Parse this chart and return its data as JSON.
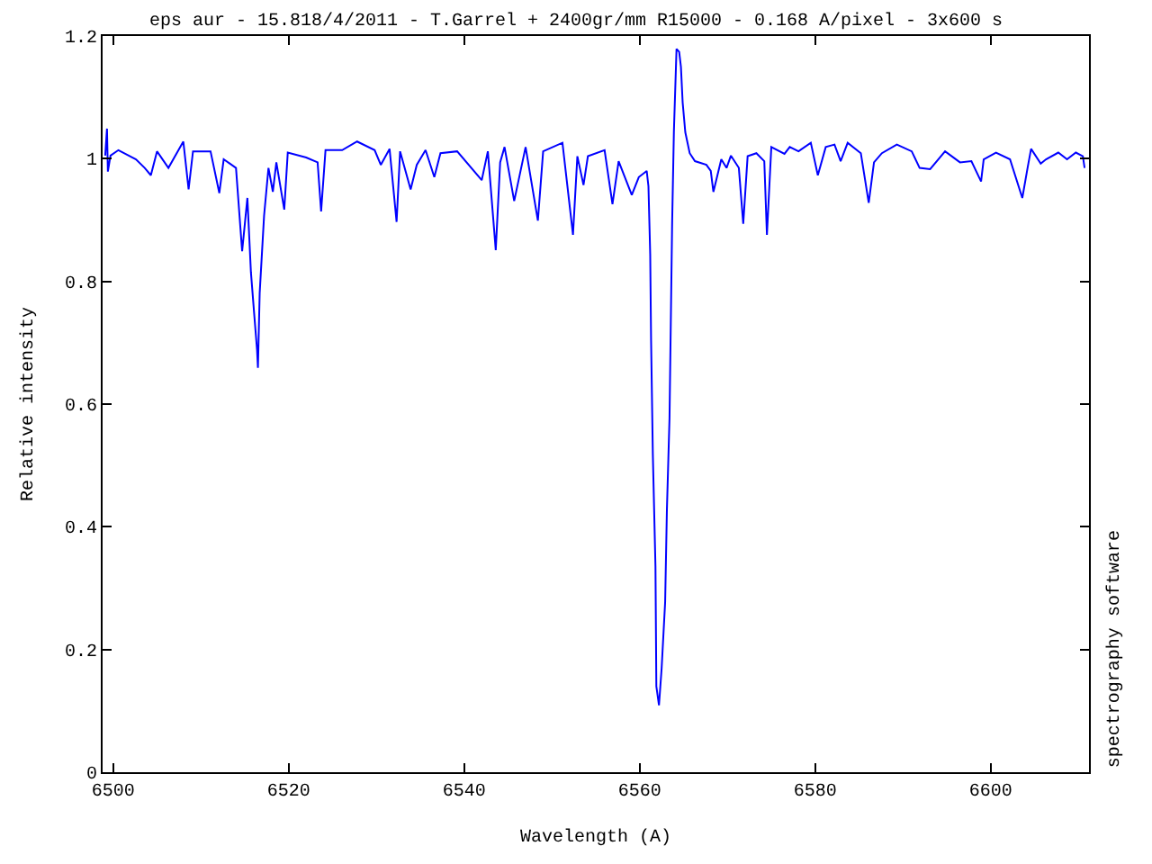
{
  "chart_data": {
    "type": "line",
    "title": "eps aur - 15.818/4/2011 - T.Garrel + 2400gr/mm R15000 - 0.168 A/pixel - 3x600 s",
    "xlabel": "Wavelength (A)",
    "ylabel": "Relative intensity",
    "annotations": [
      "spectrography software"
    ],
    "x": [
      6499.1,
      6499.3,
      6499.4,
      6499.7,
      6500.6,
      6502.6,
      6503.6,
      6504.3,
      6505.0,
      6506.3,
      6508.0,
      6508.6,
      6509.1,
      6511.1,
      6512.1,
      6512.6,
      6514.0,
      6514.7,
      6515.3,
      6515.7,
      6516.1,
      6516.4,
      6516.5,
      6516.7,
      6517.2,
      6517.7,
      6518.2,
      6518.6,
      6519.5,
      6519.9,
      6522.0,
      6523.3,
      6523.7,
      6524.2,
      6526.1,
      6527.8,
      6529.8,
      6530.5,
      6531.5,
      6532.3,
      6532.7,
      6533.9,
      6534.6,
      6535.6,
      6536.6,
      6537.3,
      6539.2,
      6542.0,
      6542.7,
      6543.6,
      6544.1,
      6544.6,
      6545.7,
      6547.0,
      6548.4,
      6549.0,
      6551.2,
      6552.4,
      6552.9,
      6553.6,
      6554.1,
      6556.0,
      6556.9,
      6557.6,
      6559.1,
      6559.9,
      6560.8,
      6561.0,
      6561.2,
      6561.3,
      6561.5,
      6561.8,
      6561.9,
      6562.2,
      6562.5,
      6562.9,
      6563.1,
      6563.4,
      6563.7,
      6563.9,
      6564.2,
      6564.5,
      6564.7,
      6564.9,
      6565.2,
      6565.7,
      6566.3,
      6567.6,
      6568.1,
      6568.4,
      6569.3,
      6569.9,
      6570.4,
      6571.3,
      6571.8,
      6572.3,
      6573.3,
      6574.2,
      6574.5,
      6575.0,
      6576.5,
      6577.1,
      6578.1,
      6579.5,
      6580.3,
      6581.2,
      6582.2,
      6582.9,
      6583.7,
      6585.2,
      6586.1,
      6586.7,
      6587.6,
      6589.3,
      6591.0,
      6591.9,
      6593.1,
      6594.8,
      6596.5,
      6597.8,
      6598.9,
      6599.2,
      6600.6,
      6602.2,
      6603.6,
      6604.2,
      6604.6,
      6605.7,
      6606.3,
      6607.7,
      6608.7,
      6609.7,
      6610.5,
      6610.7
    ],
    "series": [
      {
        "color": "#0000ff",
        "values": [
          1.005,
          1.049,
          0.979,
          1.005,
          1.014,
          0.999,
          0.985,
          0.973,
          1.012,
          0.985,
          1.028,
          0.95,
          1.012,
          1.012,
          0.944,
          0.999,
          0.985,
          0.849,
          0.936,
          0.815,
          0.742,
          0.688,
          0.659,
          0.781,
          0.907,
          0.985,
          0.946,
          0.994,
          0.917,
          1.01,
          1.002,
          0.994,
          0.914,
          1.014,
          1.014,
          1.028,
          1.014,
          0.99,
          1.016,
          0.897,
          1.012,
          0.95,
          0.99,
          1.014,
          0.97,
          1.009,
          1.012,
          0.965,
          1.012,
          0.851,
          0.994,
          1.019,
          0.931,
          1.019,
          0.899,
          1.012,
          1.026,
          0.876,
          1.004,
          0.957,
          1.004,
          1.014,
          0.926,
          0.996,
          0.941,
          0.97,
          0.98,
          0.955,
          0.844,
          0.703,
          0.518,
          0.335,
          0.14,
          0.109,
          0.169,
          0.277,
          0.426,
          0.577,
          0.897,
          1.045,
          1.179,
          1.174,
          1.15,
          1.091,
          1.043,
          1.009,
          0.996,
          0.99,
          0.98,
          0.946,
          0.999,
          0.985,
          1.005,
          0.985,
          0.894,
          1.004,
          1.009,
          0.996,
          0.876,
          1.019,
          1.008,
          1.019,
          1.012,
          1.026,
          0.973,
          1.019,
          1.023,
          0.996,
          1.026,
          1.009,
          0.928,
          0.994,
          1.009,
          1.023,
          1.012,
          0.985,
          0.983,
          1.012,
          0.994,
          0.996,
          0.963,
          0.999,
          1.01,
          0.999,
          0.936,
          0.985,
          1.016,
          0.992,
          0.999,
          1.01,
          0.999,
          1.01,
          1.004,
          0.985
        ]
      }
    ],
    "xlim": [
      6498.8,
      6611.2
    ],
    "xticks": [
      6500,
      6520,
      6540,
      6560,
      6580,
      6600
    ],
    "ylim": [
      0,
      1.2
    ],
    "yticks": [
      0,
      0.2,
      0.4,
      0.6,
      0.8,
      1,
      1.2
    ],
    "grid": false,
    "marker": "none",
    "line_style": "solid"
  }
}
